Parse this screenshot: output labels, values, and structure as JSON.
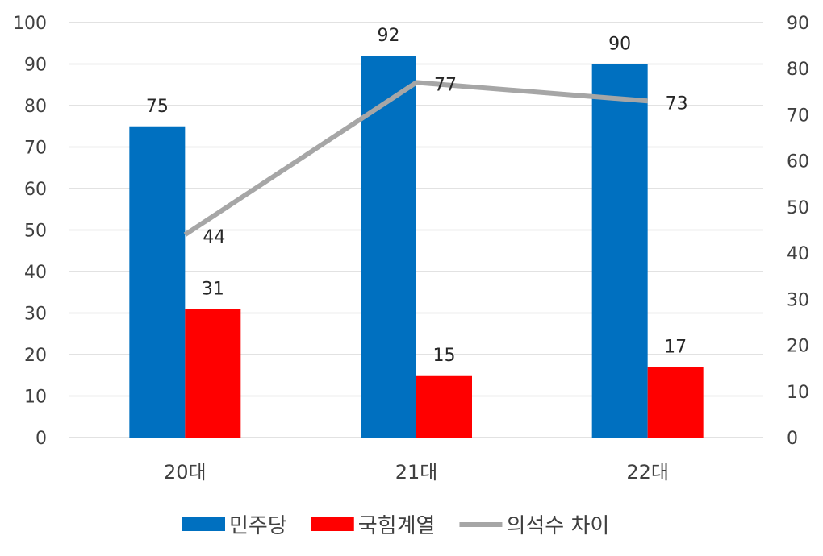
{
  "chart_data": {
    "type": "bar",
    "categories": [
      "20대",
      "21대",
      "22대"
    ],
    "series": [
      {
        "name": "민주당",
        "kind": "bar",
        "axis": "left",
        "color": "#0070c0",
        "values": [
          75,
          92,
          90
        ]
      },
      {
        "name": "국힘계열",
        "kind": "bar",
        "axis": "left",
        "color": "#ff0000",
        "values": [
          31,
          15,
          17
        ]
      },
      {
        "name": "의석수 차이",
        "kind": "line",
        "axis": "right",
        "color": "#a6a6a6",
        "values": [
          44,
          77,
          73
        ]
      }
    ],
    "y_left": {
      "min": 0,
      "max": 100,
      "step": 10
    },
    "y_right": {
      "min": 0,
      "max": 90,
      "step": 10
    },
    "grid": true,
    "legend_position": "bottom",
    "data_labels": true
  }
}
